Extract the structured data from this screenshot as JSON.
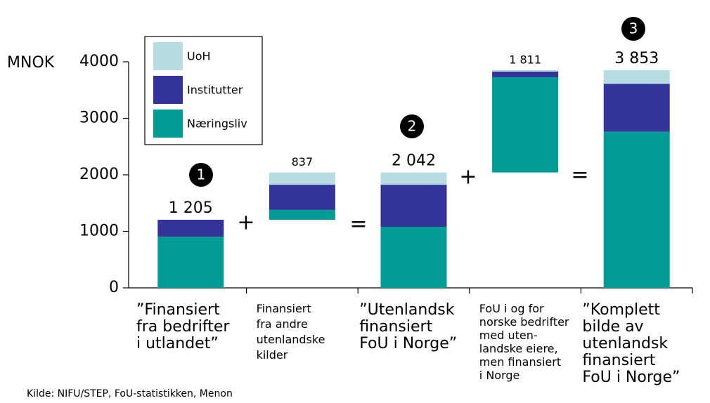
{
  "chart_data": {
    "type": "waterfall",
    "y_label": "MNOK",
    "categories": [
      [
        "”Finansiert",
        "fra bedrifter",
        "i utlandet”"
      ],
      [
        "Finansiert",
        "fra andre",
        "utenlandske",
        "kilder"
      ],
      [
        "”Utenlandsk",
        "finansiert",
        "FoU i Norge”"
      ],
      [
        "FoU i og for",
        "norske bedrifter",
        "med uten-",
        "landske eiere,",
        "men finansiert",
        "i Norge"
      ],
      [
        "”Komplett",
        "bilde av",
        "utenlandsk",
        "finansiert",
        "FoU i Norge”"
      ]
    ],
    "measure": [
      "absolute",
      "relative",
      "total",
      "relative",
      "total"
    ],
    "series": [
      {
        "name": "Næringsliv",
        "color": "#009b95",
        "values": [
          905,
          175,
          1080,
          1685,
          2765
        ]
      },
      {
        "name": "Institutter",
        "color": "#33339a",
        "values": [
          300,
          445,
          745,
          100,
          845
        ]
      },
      {
        "name": "UoH",
        "color": "#b7dde3",
        "values": [
          0,
          217,
          217,
          26,
          243
        ]
      }
    ],
    "totals": [
      1205,
      837,
      2042,
      1811,
      3853
    ],
    "value_labels": [
      "1 205",
      "837",
      "2 042",
      "1 811",
      "3 853"
    ],
    "annotations": [
      "1",
      "+",
      "=",
      "2",
      "+",
      "=",
      "3"
    ],
    "ylim": [
      0,
      4000
    ],
    "yticks": [
      0,
      1000,
      2000,
      3000,
      4000
    ],
    "legend": "top-left",
    "source": "Kilde: NIFU/STEP, FoU-statistikken, Menon"
  }
}
